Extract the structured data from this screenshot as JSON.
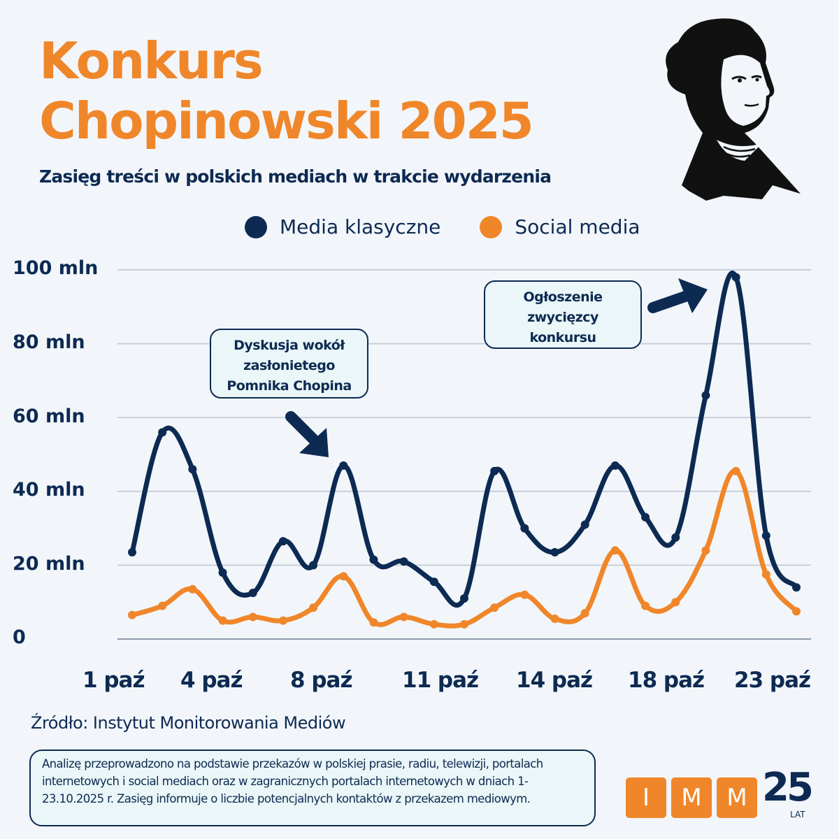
{
  "header": {
    "title_line1": "Konkurs",
    "title_line2": "Chopinowski 2025",
    "subtitle": "Zasięg treści w polskich mediach w trakcie wydarzenia",
    "portrait_icon": "chopin-portrait-illustration"
  },
  "legend": [
    {
      "label": "Media klasyczne",
      "color": "#0d2a52"
    },
    {
      "label": "Social media",
      "color": "#f0862a"
    }
  ],
  "annotations": [
    {
      "text_lines": [
        "Dyskusja wokół",
        "zasłonietego",
        "Pomnika Chopina"
      ],
      "points_to_day": 8
    },
    {
      "text_lines": [
        "Ogłoszenie",
        "zwycięzcy",
        "konkursu"
      ],
      "points_to_day": 21
    }
  ],
  "source": "Źródło: Instytut Monitorowania Mediów",
  "note": "Analizę przeprowadzono na podstawie przekazów w polskiej prasie, radiu, telewizji, portalach internetowych i social mediach oraz w zagranicznych portalach internetowych w dniach 1-23.10.2025 r. Zasięg informuje o liczbie potencjalnych kontaktów z przekazem mediowym.",
  "logo": {
    "letters": [
      "I",
      "M",
      "M"
    ],
    "number": "25",
    "suffix": "LAT"
  },
  "colors": {
    "navy": "#0d2a52",
    "orange": "#f0862a",
    "background": "#f2f6fa",
    "grid": "#c9cfdb"
  },
  "chart_data": {
    "type": "line",
    "title": "Konkurs Chopinowski 2025",
    "subtitle": "Zasięg treści w polskich mediach w trakcie wydarzenia",
    "xlabel": "",
    "ylabel": "",
    "x": [
      1,
      2,
      3,
      4,
      5,
      6,
      7,
      8,
      9,
      10,
      11,
      12,
      13,
      14,
      15,
      16,
      17,
      18,
      19,
      20,
      21,
      22,
      23
    ],
    "x_tick_labels": [
      "1 paź",
      "4 paź",
      "8 paź",
      "11 paź",
      "14 paź",
      "18 paź",
      "23 paź"
    ],
    "y_tick_labels": [
      "0",
      "20 mln",
      "40 mln",
      "60 mln",
      "80 mln",
      "100 mln"
    ],
    "y_ticks": [
      0,
      20,
      40,
      60,
      80,
      100
    ],
    "ylim": [
      0,
      100
    ],
    "unit": "mln",
    "grid": true,
    "legend_position": "top",
    "series": [
      {
        "name": "Media klasyczne",
        "color": "#0d2a52",
        "values": [
          23.5,
          56,
          46,
          18,
          12.5,
          26.5,
          20,
          47,
          21.5,
          21,
          15.5,
          11,
          45.5,
          30,
          23.5,
          31,
          47,
          33,
          27.5,
          66,
          98,
          28,
          14
        ]
      },
      {
        "name": "Social media",
        "color": "#f0862a",
        "values": [
          6.5,
          9,
          13.5,
          5,
          6,
          5,
          8.5,
          17,
          4.5,
          6,
          4,
          4,
          8.5,
          12,
          5.5,
          7,
          24,
          9,
          10,
          24,
          45.5,
          17.5,
          7.5
        ]
      }
    ],
    "annotations": [
      {
        "text": "Dyskusja wokół zasłonietego Pomnika Chopina",
        "x": 8
      },
      {
        "text": "Ogłoszenie zwycięzcy konkursu",
        "x": 21
      }
    ]
  }
}
